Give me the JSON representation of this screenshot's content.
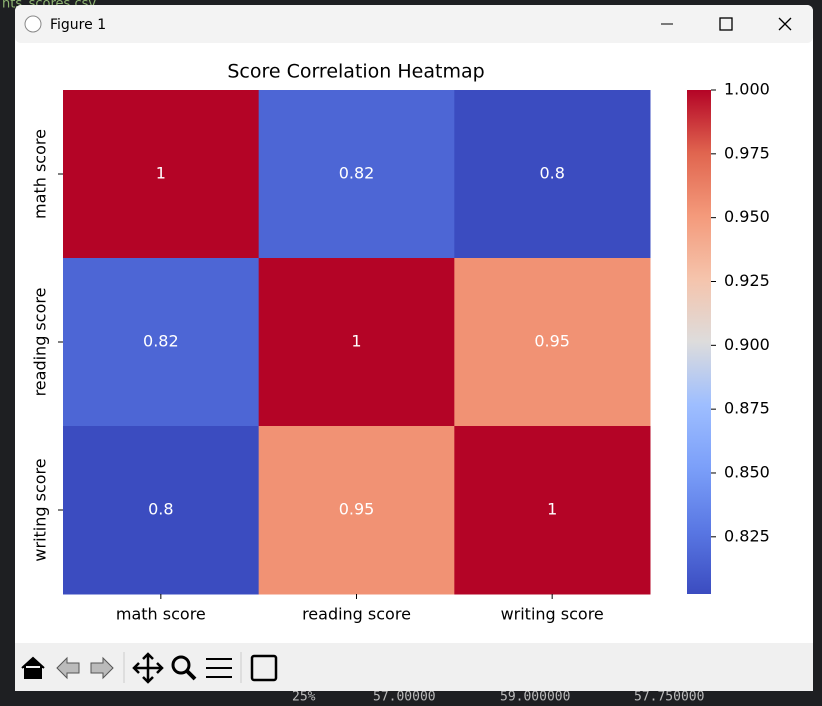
{
  "window": {
    "title": "Figure 1"
  },
  "background": {
    "texts": [
      "nts_scores.csv",
      "25%",
      "57.00000",
      "59.000000",
      "57.750000"
    ]
  },
  "chart_data": {
    "type": "heatmap",
    "title": "Score Correlation Heatmap",
    "x_categories": [
      "math score",
      "reading score",
      "writing score"
    ],
    "y_categories": [
      "math score",
      "reading score",
      "writing score"
    ],
    "values": [
      [
        1,
        0.8176,
        0.8026
      ],
      [
        0.8176,
        1,
        0.9546
      ],
      [
        0.8026,
        0.9546,
        1
      ]
    ],
    "value_labels": [
      [
        "1",
        "0.82",
        "0.8"
      ],
      [
        "0.82",
        "1",
        "0.95"
      ],
      [
        "0.8",
        "0.95",
        "1"
      ]
    ],
    "colormap": "coolwarm",
    "zlim": [
      0.8026,
      1
    ],
    "colorbar_ticks": [
      0.825,
      {
        "value": 0.85,
        "label": "0.850"
      },
      0.875,
      {
        "value": 0.9,
        "label": "0.900"
      },
      0.925,
      {
        "value": 0.95,
        "label": "0.950"
      },
      0.975,
      {
        "value": 1,
        "label": "1.000"
      }
    ]
  }
}
